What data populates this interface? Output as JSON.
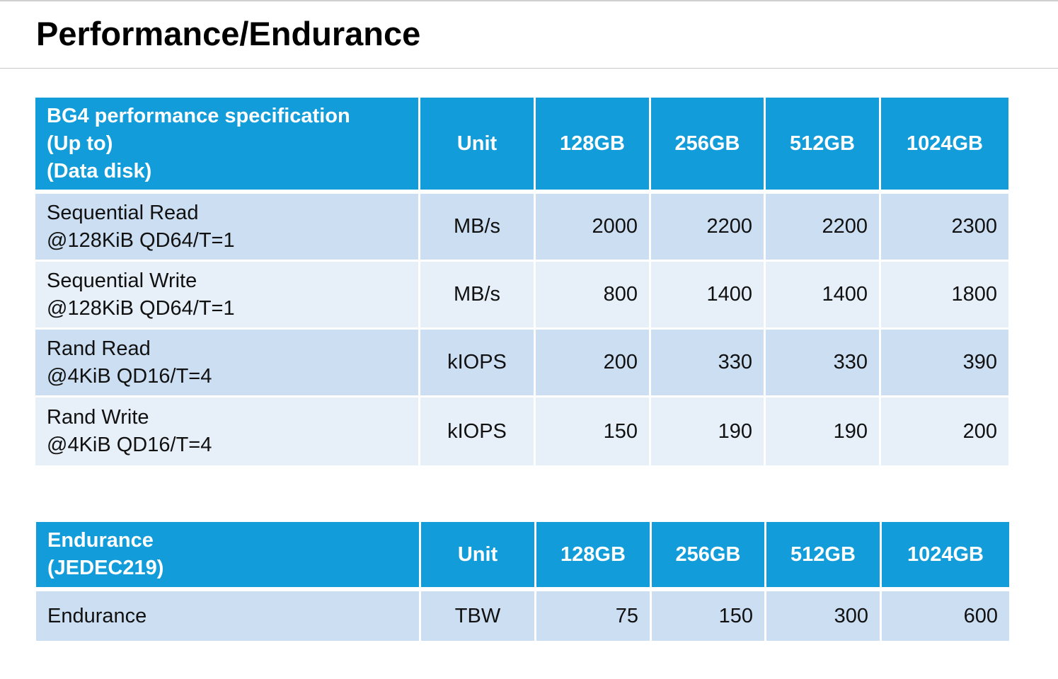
{
  "slide": {
    "title": "Performance/Endurance"
  },
  "performance_table": {
    "header": {
      "title_lines": [
        "BG4 performance specification",
        "(Up to)",
        "(Data disk)"
      ],
      "unit": "Unit",
      "capacities": [
        "128GB",
        "256GB",
        "512GB",
        "1024GB"
      ]
    },
    "rows": [
      {
        "label_lines": [
          "Sequential Read",
          "@128KiB QD64/T=1"
        ],
        "unit": "MB/s",
        "values": [
          "2000",
          "2200",
          "2200",
          "2300"
        ]
      },
      {
        "label_lines": [
          "Sequential Write",
          "@128KiB QD64/T=1"
        ],
        "unit": "MB/s",
        "values": [
          "800",
          "1400",
          "1400",
          "1800"
        ]
      },
      {
        "label_lines": [
          "Rand Read",
          "@4KiB QD16/T=4"
        ],
        "unit": "kIOPS",
        "values": [
          "200",
          "330",
          "330",
          "390"
        ]
      },
      {
        "label_lines": [
          "Rand Write",
          "@4KiB QD16/T=4"
        ],
        "unit": "kIOPS",
        "values": [
          "150",
          "190",
          "190",
          "200"
        ]
      }
    ]
  },
  "endurance_table": {
    "header": {
      "title_lines": [
        "Endurance",
        "(JEDEC219)"
      ],
      "unit": "Unit",
      "capacities": [
        "128GB",
        "256GB",
        "512GB",
        "1024GB"
      ]
    },
    "rows": [
      {
        "label": "Endurance",
        "unit": "TBW",
        "values": [
          "75",
          "150",
          "300",
          "600"
        ]
      }
    ]
  },
  "colors": {
    "header_blue": "#129dda",
    "row_dark": "#cbdef2",
    "row_light": "#e7f0f9"
  }
}
